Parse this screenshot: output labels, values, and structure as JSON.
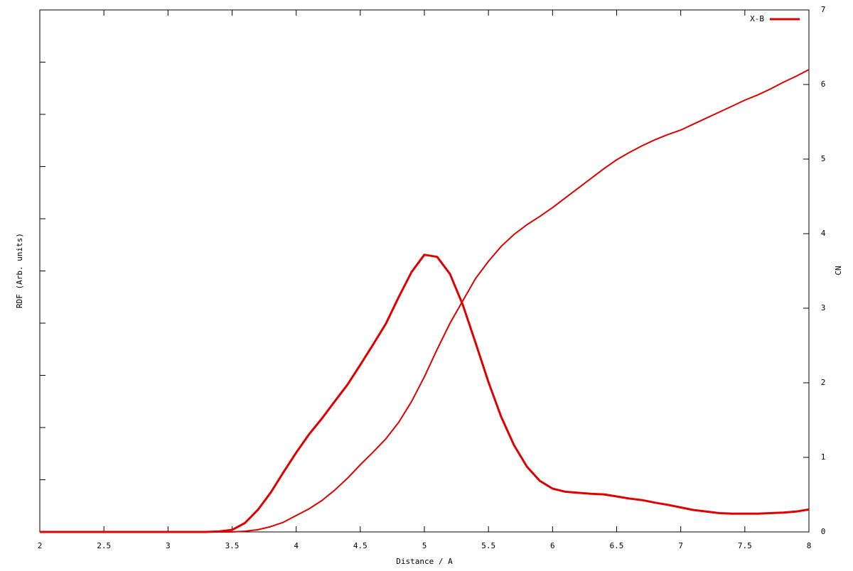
{
  "chart_data": {
    "type": "line",
    "xlabel": "Distance / A",
    "ylabel": "RDF (Arb. units)",
    "y2label": "CN",
    "x": [
      2.0,
      2.1,
      2.2,
      2.3,
      2.4,
      2.5,
      2.6,
      2.7,
      2.8,
      2.9,
      3.0,
      3.1,
      3.2,
      3.3,
      3.4,
      3.5,
      3.6,
      3.7,
      3.8,
      3.9,
      4.0,
      4.1,
      4.2,
      4.3,
      4.4,
      4.5,
      4.6,
      4.7,
      4.8,
      4.9,
      5.0,
      5.1,
      5.2,
      5.3,
      5.4,
      5.5,
      5.6,
      5.7,
      5.8,
      5.9,
      6.0,
      6.1,
      6.2,
      6.3,
      6.4,
      6.5,
      6.6,
      6.7,
      6.8,
      6.9,
      7.0,
      7.1,
      7.2,
      7.3,
      7.4,
      7.5,
      7.6,
      7.7,
      7.8,
      7.9,
      8.0
    ],
    "series": [
      {
        "name": "X-B",
        "color": "#e00000",
        "width": 3,
        "values": [
          0,
          0,
          0,
          0,
          0,
          0,
          0,
          0,
          0,
          0,
          0,
          0,
          0,
          0,
          0.01,
          0.04,
          0.17,
          0.42,
          0.75,
          1.14,
          1.52,
          1.87,
          2.17,
          2.5,
          2.82,
          3.2,
          3.59,
          3.99,
          4.5,
          4.98,
          5.31,
          5.27,
          4.94,
          4.35,
          3.62,
          2.87,
          2.2,
          1.66,
          1.25,
          0.98,
          0.83,
          0.77,
          0.75,
          0.73,
          0.72,
          0.68,
          0.64,
          0.61,
          0.56,
          0.52,
          0.47,
          0.42,
          0.39,
          0.36,
          0.35,
          0.35,
          0.35,
          0.36,
          0.37,
          0.39,
          0.43
        ]
      },
      {
        "color": "#e00000",
        "width": 2,
        "axis": "y2",
        "values": [
          0,
          0,
          0,
          0,
          0,
          0,
          0,
          0,
          0,
          0,
          0,
          0,
          0,
          0,
          0,
          0,
          0.01,
          0.03,
          0.07,
          0.13,
          0.22,
          0.31,
          0.42,
          0.56,
          0.72,
          0.9,
          1.07,
          1.25,
          1.47,
          1.75,
          2.08,
          2.45,
          2.8,
          3.1,
          3.4,
          3.63,
          3.83,
          3.99,
          4.12,
          4.23,
          4.35,
          4.48,
          4.61,
          4.74,
          4.87,
          4.99,
          5.09,
          5.18,
          5.26,
          5.33,
          5.39,
          5.47,
          5.55,
          5.63,
          5.71,
          5.79,
          5.86,
          5.94,
          6.03,
          6.11,
          6.2
        ]
      }
    ],
    "xlim": [
      2,
      8
    ],
    "xticks": [
      2,
      2.5,
      3,
      3.5,
      4,
      4.5,
      5,
      5.5,
      6,
      6.5,
      7,
      7.5,
      8
    ],
    "ylim": [
      0,
      10
    ],
    "yticks": [
      0,
      1,
      2,
      3,
      4,
      5,
      6,
      7,
      8,
      9,
      10
    ],
    "y2lim": [
      0,
      7
    ],
    "y2ticks": [
      0,
      1,
      2,
      3,
      4,
      5,
      6,
      7
    ],
    "legend": "top-right"
  }
}
